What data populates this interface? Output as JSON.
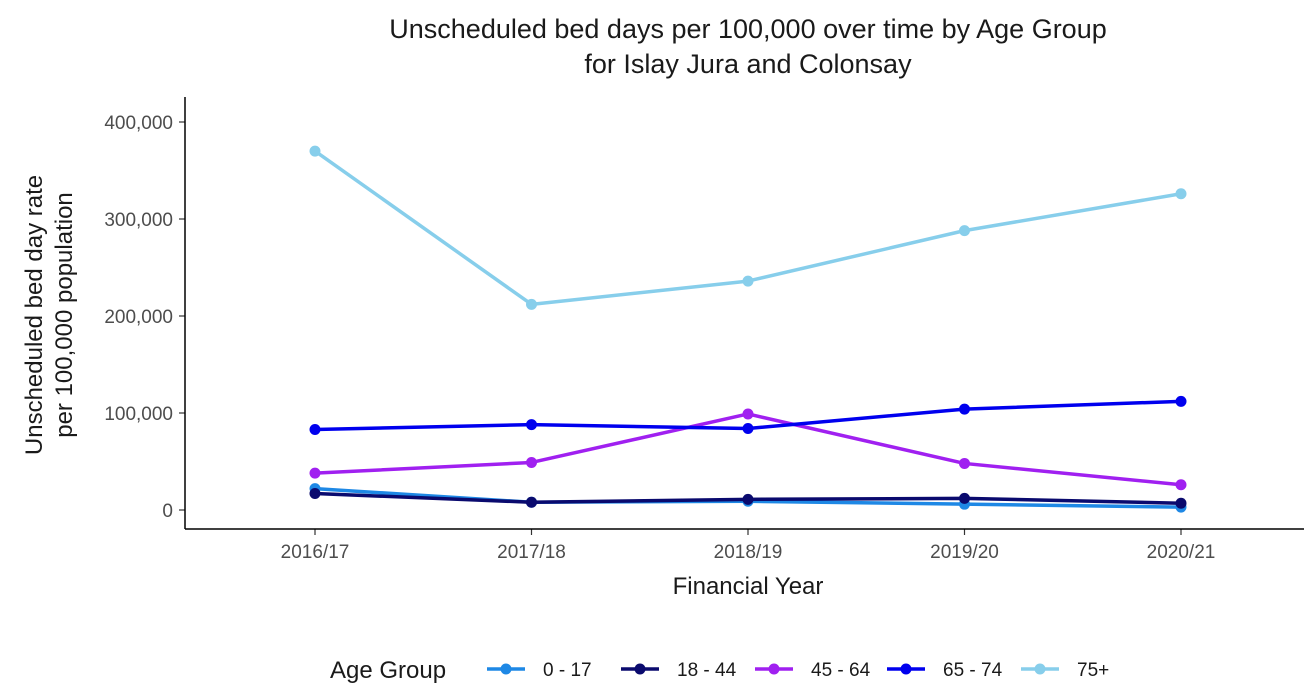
{
  "chart_data": {
    "type": "line",
    "title": [
      "Unscheduled bed days per 100,000 over time by Age Group",
      "for Islay Jura and Colonsay"
    ],
    "xlabel": "Financial Year",
    "ylabel": [
      "Unscheduled bed day rate",
      "per 100,000 population"
    ],
    "categories": [
      "2016/17",
      "2017/18",
      "2018/19",
      "2019/20",
      "2020/21"
    ],
    "ylim": [
      0,
      400000
    ],
    "yticks": [
      0,
      100000,
      200000,
      300000,
      400000
    ],
    "ytick_labels": [
      "0",
      "100,000",
      "200,000",
      "300,000",
      "400,000"
    ],
    "legend_title": "Age Group",
    "legend_position": "bottom",
    "grid": false,
    "series": [
      {
        "name": "0 - 17",
        "color": "#1e88e5",
        "values": [
          22000,
          8000,
          9000,
          6000,
          3000
        ]
      },
      {
        "name": "18 - 44",
        "color": "#0a0a6e",
        "values": [
          17000,
          8000,
          11000,
          12000,
          7000
        ]
      },
      {
        "name": "45 - 64",
        "color": "#a020f0",
        "values": [
          38000,
          49000,
          99000,
          48000,
          26000
        ]
      },
      {
        "name": "65 - 74",
        "color": "#0000ee",
        "values": [
          83000,
          88000,
          84000,
          104000,
          112000
        ]
      },
      {
        "name": "75+",
        "color": "#87ceeb",
        "values": [
          370000,
          212000,
          236000,
          288000,
          326000
        ]
      }
    ]
  }
}
